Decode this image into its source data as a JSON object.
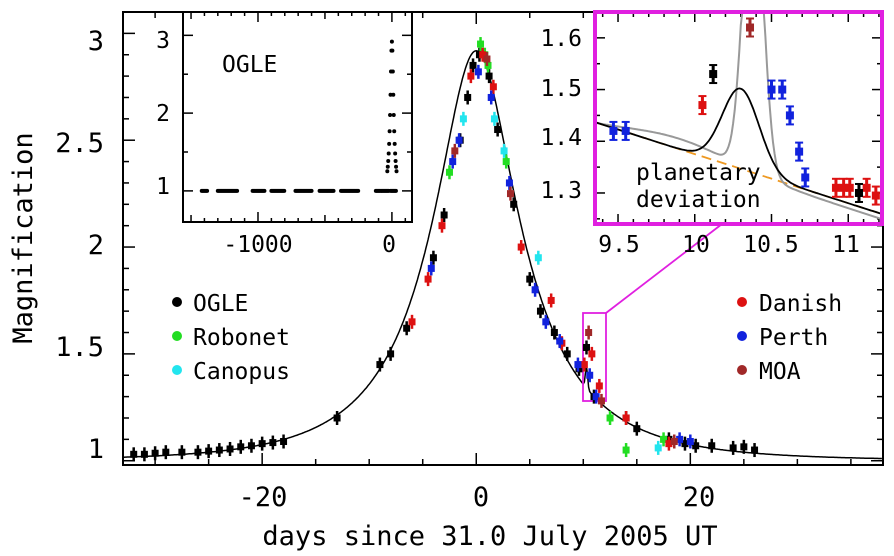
{
  "chart_data": [
    {
      "id": "main",
      "type": "scatter",
      "xlabel": "days since 31.0 July 2005 UT",
      "ylabel": "Magnification",
      "xlim": [
        -33,
        38
      ],
      "ylim": [
        0.98,
        3.1
      ],
      "xticks": [
        "-20",
        "0",
        "20"
      ],
      "yticks": [
        "1",
        "1.5",
        "2",
        "2.5",
        "3"
      ],
      "model": {
        "u0": 0.359,
        "tE": 11.0,
        "t0": 0.0
      },
      "legend_left": [
        "OGLE",
        "Robonet",
        "Canopus"
      ],
      "legend_right": [
        "Danish",
        "Perth",
        "MOA"
      ],
      "series": [
        {
          "name": "OGLE",
          "color": "#000000",
          "points": [
            [
              -32,
              1.03
            ],
            [
              -31,
              1.03
            ],
            [
              -30,
              1.035
            ],
            [
              -29,
              1.04
            ],
            [
              -27.5,
              1.04
            ],
            [
              -26,
              1.04
            ],
            [
              -25,
              1.045
            ],
            [
              -24,
              1.05
            ],
            [
              -23,
              1.055
            ],
            [
              -22,
              1.065
            ],
            [
              -21,
              1.07
            ],
            [
              -20,
              1.08
            ],
            [
              -19,
              1.085
            ],
            [
              -18,
              1.09
            ],
            [
              -13,
              1.2
            ],
            [
              -9,
              1.45
            ],
            [
              -8,
              1.5
            ],
            [
              -6.5,
              1.62
            ],
            [
              -4,
              1.95
            ],
            [
              -3,
              2.15
            ],
            [
              -1.5,
              2.5
            ],
            [
              -0.8,
              2.7
            ],
            [
              -0.3,
              2.85
            ],
            [
              0.3,
              2.9
            ],
            [
              1.2,
              2.8
            ],
            [
              2,
              2.55
            ],
            [
              3.5,
              2.2
            ],
            [
              5,
              1.85
            ],
            [
              6,
              1.7
            ],
            [
              7.3,
              1.6
            ],
            [
              8.5,
              1.5
            ],
            [
              9.6,
              1.43
            ],
            [
              10.3,
              1.53
            ],
            [
              11,
              1.3
            ],
            [
              14,
              1.2
            ],
            [
              15,
              1.15
            ],
            [
              18,
              1.1
            ],
            [
              19.5,
              1.08
            ],
            [
              20.5,
              1.07
            ],
            [
              22,
              1.07
            ],
            [
              24,
              1.06
            ],
            [
              25,
              1.065
            ],
            [
              26,
              1.05
            ]
          ]
        },
        {
          "name": "Robonet",
          "color": "#22dd22",
          "points": [
            [
              -2.5,
              2.35
            ],
            [
              0.4,
              2.95
            ],
            [
              0.8,
              2.9
            ],
            [
              1.1,
              2.85
            ],
            [
              2.8,
              2.4
            ],
            [
              12.5,
              1.2
            ],
            [
              14,
              1.05
            ],
            [
              17.5,
              1.1
            ]
          ]
        },
        {
          "name": "Canopus",
          "color": "#22e5ee",
          "points": [
            [
              -1.2,
              2.6
            ],
            [
              1.7,
              2.6
            ],
            [
              2.6,
              2.45
            ],
            [
              5.8,
              1.95
            ],
            [
              17,
              1.06
            ]
          ]
        },
        {
          "name": "Danish",
          "color": "#dd1111",
          "points": [
            [
              -6,
              1.65
            ],
            [
              -4.5,
              1.85
            ],
            [
              -3.2,
              2.1
            ],
            [
              -0.5,
              2.8
            ],
            [
              0.6,
              2.9
            ],
            [
              1.6,
              2.75
            ],
            [
              4.2,
              2.0
            ],
            [
              7,
              1.75
            ],
            [
              8,
              1.55
            ],
            [
              10.1,
              1.45
            ],
            [
              10.8,
              1.5
            ],
            [
              11.5,
              1.35
            ],
            [
              14,
              1.2
            ],
            [
              18,
              1.08
            ]
          ]
        },
        {
          "name": "Perth",
          "color": "#1122dd",
          "points": [
            [
              -4.2,
              1.9
            ],
            [
              -2.2,
              2.4
            ],
            [
              -1.6,
              2.5
            ],
            [
              0.2,
              2.82
            ],
            [
              1.4,
              2.7
            ],
            [
              3.1,
              2.3
            ],
            [
              5.5,
              1.8
            ],
            [
              6.5,
              1.65
            ],
            [
              7.8,
              1.56
            ],
            [
              9.5,
              1.45
            ],
            [
              10.6,
              1.4
            ],
            [
              11.2,
              1.3
            ],
            [
              19,
              1.1
            ],
            [
              20,
              1.09
            ]
          ]
        },
        {
          "name": "MOA",
          "color": "#a02828",
          "points": [
            [
              -2,
              2.45
            ],
            [
              1.0,
              2.88
            ],
            [
              3.2,
              2.25
            ],
            [
              10.5,
              1.6
            ],
            [
              11.7,
              1.28
            ],
            [
              18.5,
              1.09
            ]
          ]
        }
      ]
    },
    {
      "id": "ogle-inset",
      "type": "scatter",
      "title": "OGLE",
      "xlim": [
        -1560,
        150
      ],
      "ylim": [
        0.6,
        3.3
      ],
      "xticks": [
        "-1000",
        "0"
      ],
      "yticks": [
        "1",
        "2",
        "3"
      ]
    },
    {
      "id": "zoom-inset",
      "type": "scatter",
      "annotation": [
        "planetary",
        "deviation"
      ],
      "xlim": [
        9.35,
        11.22
      ],
      "ylim": [
        1.24,
        1.65
      ],
      "xticks": [
        "9.5",
        "10",
        "10.5",
        "11"
      ],
      "yticks": [
        "1.3",
        "1.4",
        "1.5",
        "1.6"
      ],
      "colors": {
        "highlight": "#e020e0",
        "baseline": "#ee9922",
        "alt_model": "#999999"
      },
      "series": [
        {
          "name": "Perth",
          "color": "#1122dd",
          "points": [
            [
              9.47,
              1.42
            ],
            [
              9.55,
              1.42
            ],
            [
              10.5,
              1.5
            ],
            [
              10.57,
              1.5
            ],
            [
              10.62,
              1.45
            ],
            [
              10.68,
              1.38
            ],
            [
              10.72,
              1.33
            ]
          ]
        },
        {
          "name": "Danish",
          "color": "#dd1111",
          "points": [
            [
              10.05,
              1.47
            ],
            [
              10.92,
              1.31
            ],
            [
              10.97,
              1.31
            ],
            [
              11.01,
              1.31
            ],
            [
              11.12,
              1.31
            ],
            [
              11.18,
              1.295
            ]
          ]
        },
        {
          "name": "OGLE",
          "color": "#000000",
          "points": [
            [
              10.12,
              1.53
            ],
            [
              11.07,
              1.3
            ]
          ]
        },
        {
          "name": "MOA",
          "color": "#a02828",
          "points": [
            [
              10.36,
              1.62
            ]
          ]
        }
      ]
    }
  ]
}
